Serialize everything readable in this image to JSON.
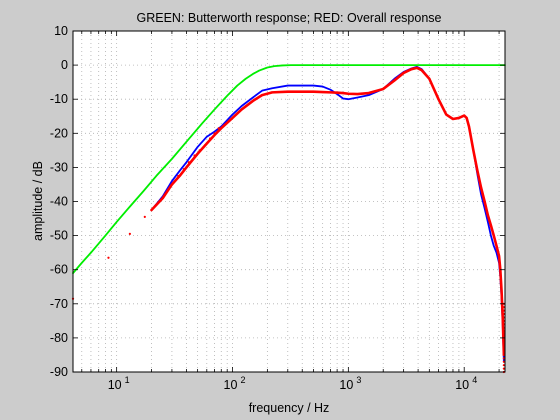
{
  "chart_data": {
    "type": "line",
    "title": "GREEN: Butterworth response; RED: Overall response",
    "xlabel": "frequency / Hz",
    "ylabel": "amplitude / dB",
    "x_scale": "log",
    "xlim": [
      4.2,
      22500
    ],
    "ylim": [
      -90,
      10
    ],
    "grid": "dotted",
    "x_ticks": [
      {
        "value": 10,
        "label": "10",
        "sup": "1"
      },
      {
        "value": 100,
        "label": "10",
        "sup": "2"
      },
      {
        "value": 1000,
        "label": "10",
        "sup": "3"
      },
      {
        "value": 10000,
        "label": "10",
        "sup": "4"
      }
    ],
    "y_ticks": [
      10,
      0,
      -10,
      -20,
      -30,
      -40,
      -50,
      -60,
      -70,
      -80,
      -90
    ],
    "series": [
      {
        "color": "#00ee00",
        "style": "line",
        "x": [
          4.2,
          5,
          6,
          8,
          10,
          13,
          17,
          22,
          30,
          40,
          55,
          70,
          90,
          110,
          130,
          150,
          170,
          200,
          230,
          270,
          320,
          400,
          500,
          700,
          1000,
          2000,
          5000,
          10000,
          22500
        ],
        "y": [
          -61,
          -58,
          -55,
          -50,
          -46,
          -41.5,
          -37,
          -32.5,
          -27.5,
          -22.5,
          -17,
          -13,
          -9,
          -6,
          -4,
          -2.6,
          -1.6,
          -0.7,
          -0.3,
          -0.1,
          0,
          0,
          0,
          0,
          0,
          0,
          0,
          0,
          0
        ]
      },
      {
        "color": "#0000ff",
        "style": "line",
        "x": [
          20,
          25,
          30,
          35,
          40,
          50,
          60,
          70,
          80,
          100,
          120,
          150,
          180,
          220,
          300,
          400,
          500,
          600,
          700,
          800,
          900,
          1000,
          1200,
          1500,
          2000,
          2500,
          3000,
          3500,
          3900,
          4300,
          5000,
          6000,
          7000,
          8000,
          9000,
          10000,
          10500,
          11000,
          12000,
          13000,
          14000,
          15000,
          16000,
          17000,
          18000,
          19000,
          20000,
          20500,
          21000,
          21500,
          22000
        ],
        "y": [
          -42.5,
          -38.5,
          -34,
          -31,
          -28.5,
          -24,
          -21,
          -19.5,
          -18,
          -14.5,
          -12,
          -9.5,
          -7.5,
          -6.8,
          -6,
          -6,
          -6,
          -6.3,
          -7.2,
          -8.5,
          -9.8,
          -10,
          -9.5,
          -8.8,
          -7,
          -4,
          -2,
          -1,
          -0.5,
          -1.2,
          -4,
          -10,
          -14.5,
          -15.8,
          -15.5,
          -14.8,
          -15.5,
          -18,
          -25,
          -32,
          -38,
          -42,
          -46,
          -50,
          -53,
          -55,
          -58,
          -62,
          -68,
          -76,
          -87
        ]
      },
      {
        "color": "#ff0000",
        "style": "line",
        "x": [
          20,
          25,
          30,
          35,
          40,
          50,
          60,
          70,
          80,
          100,
          120,
          150,
          180,
          220,
          300,
          400,
          500,
          600,
          700,
          800,
          900,
          1000,
          1200,
          1500,
          2000,
          2500,
          3000,
          3500,
          3900,
          4300,
          5000,
          6000,
          7000,
          8000,
          9000,
          10000,
          10500,
          11000,
          12000,
          13000,
          14000,
          15000,
          16000,
          17000,
          18000,
          19000,
          20000,
          20500,
          21000,
          21500,
          22000
        ],
        "y": [
          -42.5,
          -39,
          -35,
          -32.5,
          -30,
          -26,
          -23,
          -20.5,
          -18.5,
          -15.5,
          -13,
          -10.5,
          -8.8,
          -8,
          -7.8,
          -7.8,
          -7.8,
          -7.9,
          -8,
          -8.1,
          -8.2,
          -8.4,
          -8.5,
          -8.2,
          -7,
          -4.5,
          -2.3,
          -1.2,
          -0.8,
          -1.5,
          -4,
          -10,
          -14.5,
          -15.8,
          -15.5,
          -14.8,
          -15.5,
          -18,
          -25,
          -31,
          -36,
          -40,
          -44,
          -47,
          -50,
          -53,
          -56,
          -60,
          -66,
          -74,
          -85
        ]
      },
      {
        "color": "#ff0000",
        "style": "dots",
        "x": [
          4.2,
          8.5,
          13,
          17.5,
          26,
          30,
          34,
          38,
          42,
          47,
          52,
          58,
          64,
          70,
          76
        ],
        "y": [
          -68.5,
          -56.5,
          -49.5,
          -44.5,
          -38,
          -35,
          -32.5,
          -30.5,
          -28.5,
          -26.5,
          -25,
          -23.5,
          -21.5,
          -20,
          -18.5
        ]
      },
      {
        "color": "#ff0000",
        "style": "dots",
        "x": [
          22000,
          22000,
          22000,
          22000,
          22000,
          22000,
          22000,
          22000,
          22000,
          22000,
          22000,
          22000,
          22000,
          22000,
          22000,
          22000,
          22000,
          22000,
          22000,
          22000,
          22000
        ],
        "y": [
          -70,
          -71,
          -72,
          -73,
          -74,
          -75,
          -76,
          -77,
          -78,
          -79,
          -80,
          -81,
          -82,
          -83,
          -84,
          -85,
          -86,
          -87,
          -88,
          -89,
          -90
        ]
      }
    ]
  }
}
